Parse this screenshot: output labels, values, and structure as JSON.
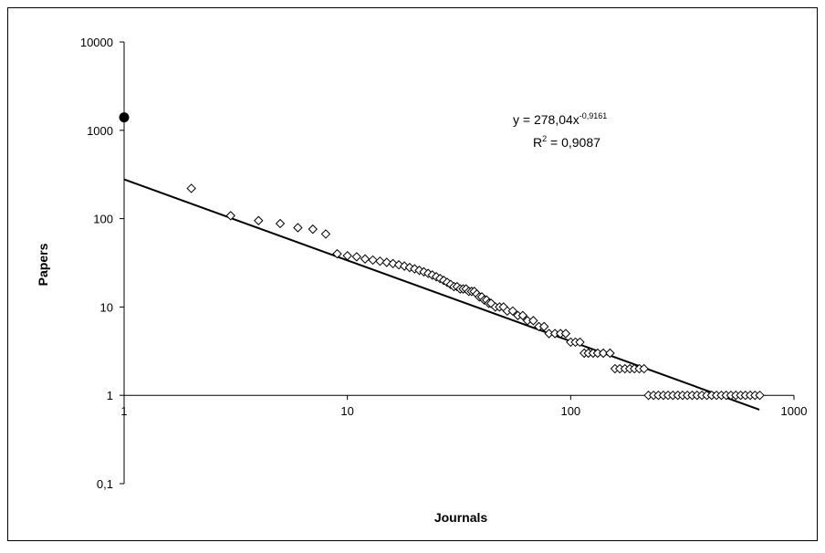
{
  "chart_data": {
    "type": "scatter",
    "title": "",
    "xlabel": "Journals",
    "ylabel": "Papers",
    "x_scale": "log",
    "y_scale": "log",
    "xlim": [
      1,
      1000
    ],
    "ylim": [
      0.1,
      10000
    ],
    "x_ticks": [
      "1",
      "10",
      "100",
      "1000"
    ],
    "y_ticks": [
      "10000",
      "1000",
      "100",
      "10",
      "1",
      "0,1"
    ],
    "grid": false,
    "legend": "none",
    "annotation": {
      "equation_prefix": "y = 278,04x",
      "equation_exponent": "-0,9161",
      "r2_prefix": "R",
      "r2_exponent": "2",
      "r2_suffix": " = 0,9087"
    },
    "trendline": {
      "coefficient": 278.04,
      "exponent": -0.9161,
      "x_range": [
        1,
        700
      ]
    },
    "colors": {
      "points": "#000000",
      "trendline": "#000000",
      "highlight": "#000000"
    },
    "series": [
      {
        "marker": "filled-circle",
        "points": [
          {
            "x": 1,
            "y": 1400
          }
        ]
      },
      {
        "marker": "open-diamond",
        "points": [
          {
            "x": 2,
            "y": 220
          },
          {
            "x": 3,
            "y": 108
          },
          {
            "x": 4,
            "y": 95
          },
          {
            "x": 5,
            "y": 88
          },
          {
            "x": 6,
            "y": 79
          },
          {
            "x": 7,
            "y": 76
          },
          {
            "x": 8,
            "y": 67
          },
          {
            "x": 9,
            "y": 40
          },
          {
            "x": 10,
            "y": 38
          },
          {
            "x": 11,
            "y": 37
          },
          {
            "x": 12,
            "y": 35
          },
          {
            "x": 13,
            "y": 34
          },
          {
            "x": 14,
            "y": 33
          },
          {
            "x": 15,
            "y": 32
          },
          {
            "x": 16,
            "y": 31
          },
          {
            "x": 17,
            "y": 30
          },
          {
            "x": 18,
            "y": 29
          },
          {
            "x": 19,
            "y": 28
          },
          {
            "x": 20,
            "y": 27
          },
          {
            "x": 21,
            "y": 26
          },
          {
            "x": 22,
            "y": 25
          },
          {
            "x": 23,
            "y": 24
          },
          {
            "x": 24,
            "y": 23
          },
          {
            "x": 25,
            "y": 22
          },
          {
            "x": 26,
            "y": 21
          },
          {
            "x": 27,
            "y": 20
          },
          {
            "x": 28,
            "y": 19
          },
          {
            "x": 29,
            "y": 18
          },
          {
            "x": 30,
            "y": 17
          },
          {
            "x": 31,
            "y": 17
          },
          {
            "x": 32,
            "y": 16
          },
          {
            "x": 33,
            "y": 16
          },
          {
            "x": 34,
            "y": 16
          },
          {
            "x": 35,
            "y": 15
          },
          {
            "x": 36,
            "y": 15
          },
          {
            "x": 37,
            "y": 15
          },
          {
            "x": 38,
            "y": 14
          },
          {
            "x": 39,
            "y": 13
          },
          {
            "x": 40,
            "y": 13
          },
          {
            "x": 41,
            "y": 12
          },
          {
            "x": 42,
            "y": 12
          },
          {
            "x": 43,
            "y": 11
          },
          {
            "x": 44,
            "y": 11
          },
          {
            "x": 46,
            "y": 10
          },
          {
            "x": 48,
            "y": 10
          },
          {
            "x": 50,
            "y": 10
          },
          {
            "x": 52,
            "y": 9
          },
          {
            "x": 55,
            "y": 9
          },
          {
            "x": 58,
            "y": 8
          },
          {
            "x": 61,
            "y": 8
          },
          {
            "x": 64,
            "y": 7
          },
          {
            "x": 68,
            "y": 7
          },
          {
            "x": 72,
            "y": 6
          },
          {
            "x": 76,
            "y": 6
          },
          {
            "x": 80,
            "y": 5
          },
          {
            "x": 85,
            "y": 5
          },
          {
            "x": 90,
            "y": 5
          },
          {
            "x": 95,
            "y": 5
          },
          {
            "x": 100,
            "y": 4
          },
          {
            "x": 105,
            "y": 4
          },
          {
            "x": 110,
            "y": 4
          },
          {
            "x": 115,
            "y": 3
          },
          {
            "x": 120,
            "y": 3
          },
          {
            "x": 126,
            "y": 3
          },
          {
            "x": 132,
            "y": 3
          },
          {
            "x": 140,
            "y": 3
          },
          {
            "x": 150,
            "y": 3
          },
          {
            "x": 158,
            "y": 2
          },
          {
            "x": 166,
            "y": 2
          },
          {
            "x": 175,
            "y": 2
          },
          {
            "x": 184,
            "y": 2
          },
          {
            "x": 193,
            "y": 2
          },
          {
            "x": 203,
            "y": 2
          },
          {
            "x": 213,
            "y": 2
          },
          {
            "x": 223,
            "y": 1
          },
          {
            "x": 235,
            "y": 1
          },
          {
            "x": 247,
            "y": 1
          },
          {
            "x": 260,
            "y": 1
          },
          {
            "x": 273,
            "y": 1
          },
          {
            "x": 287,
            "y": 1
          },
          {
            "x": 302,
            "y": 1
          },
          {
            "x": 317,
            "y": 1
          },
          {
            "x": 333,
            "y": 1
          },
          {
            "x": 350,
            "y": 1
          },
          {
            "x": 368,
            "y": 1
          },
          {
            "x": 387,
            "y": 1
          },
          {
            "x": 407,
            "y": 1
          },
          {
            "x": 428,
            "y": 1
          },
          {
            "x": 450,
            "y": 1
          },
          {
            "x": 473,
            "y": 1
          },
          {
            "x": 497,
            "y": 1
          },
          {
            "x": 522,
            "y": 1
          },
          {
            "x": 549,
            "y": 1
          },
          {
            "x": 577,
            "y": 1
          },
          {
            "x": 606,
            "y": 1
          },
          {
            "x": 637,
            "y": 1
          },
          {
            "x": 669,
            "y": 1
          },
          {
            "x": 703,
            "y": 1
          }
        ]
      }
    ]
  }
}
